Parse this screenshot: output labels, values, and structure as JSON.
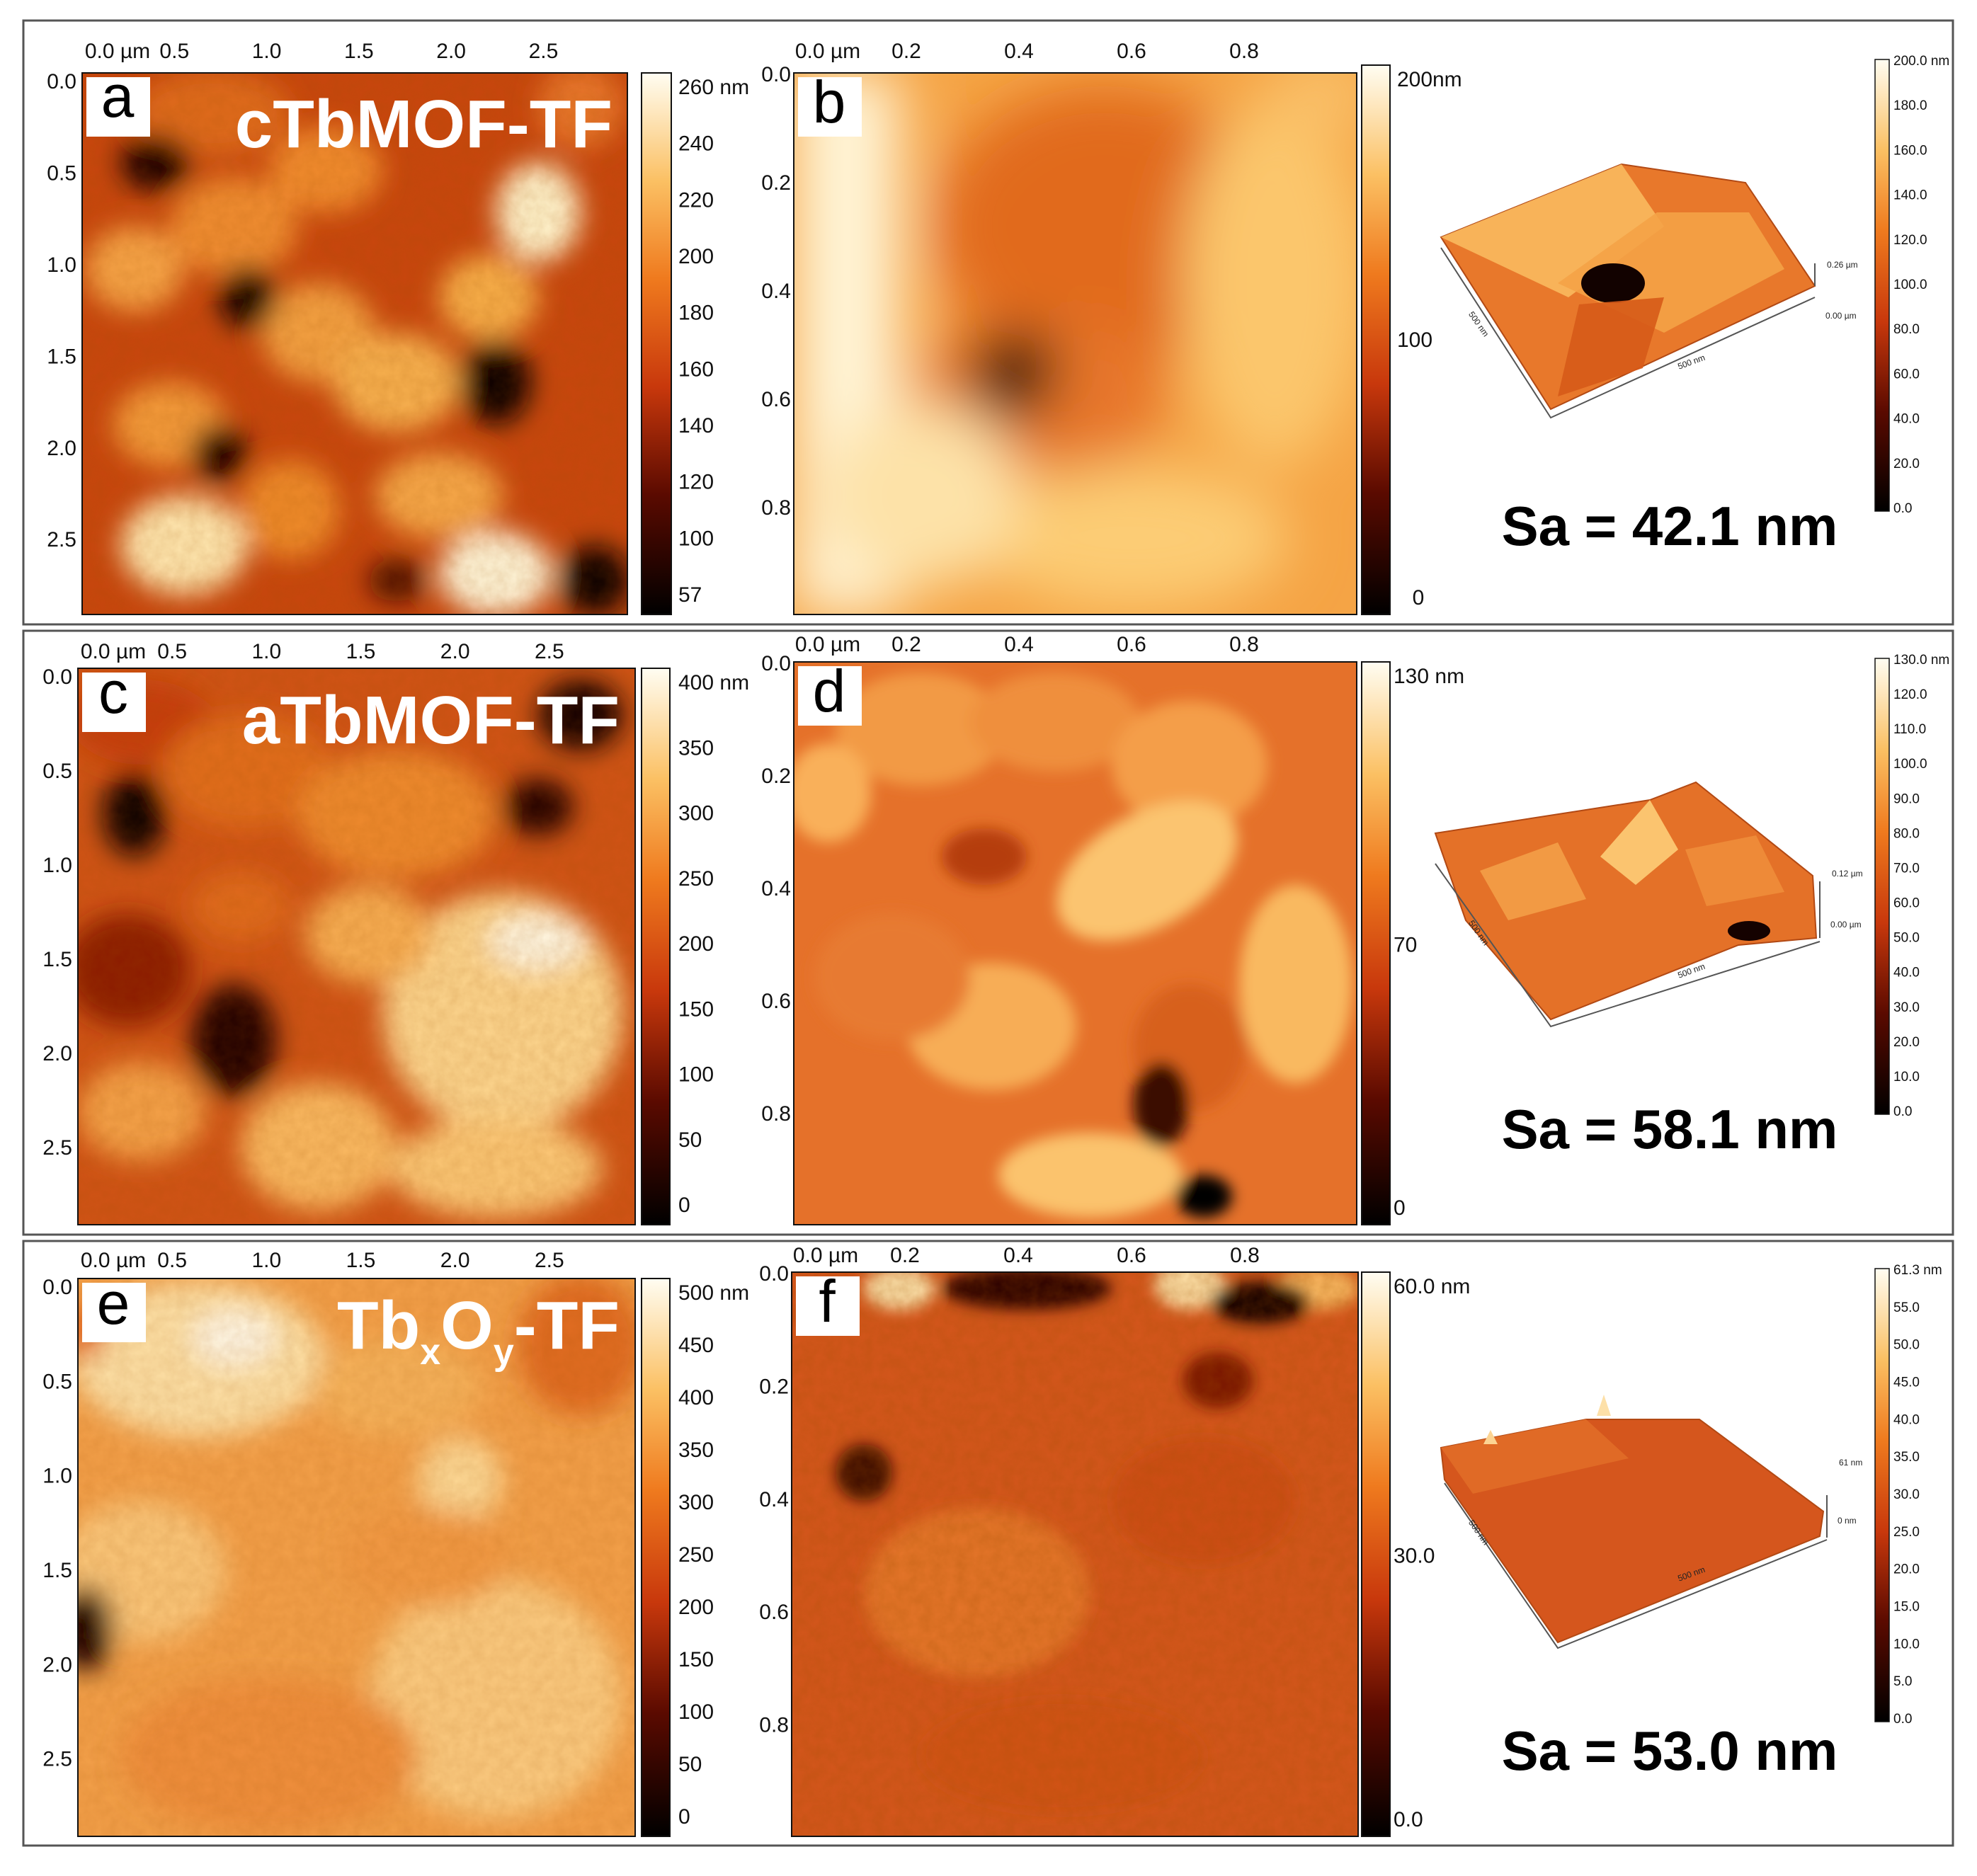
{
  "x_ticks_3um": [
    "0.0 µm",
    "0.5",
    "1.0",
    "1.5",
    "2.0",
    "2.5"
  ],
  "y_ticks_3um": [
    "0.0",
    "0.5",
    "1.0",
    "1.5",
    "2.0",
    "2.5"
  ],
  "x_ticks_1um": [
    "0.0 µm",
    "0.2",
    "0.4",
    "0.6",
    "0.8"
  ],
  "y_ticks_1um": [
    "0.0",
    "0.2",
    "0.4",
    "0.6",
    "0.8"
  ],
  "rows": [
    {
      "left_letter": "a",
      "sample_title": "cTbMOF-TF",
      "left_colorbar": [
        "260 nm",
        "240",
        "220",
        "200",
        "180",
        "160",
        "140",
        "120",
        "100",
        "57"
      ],
      "right_letter": "b",
      "right_colorbar": [
        "200",
        "nm",
        "100",
        "0"
      ],
      "view3d_colorbar": [
        "200.0 nm",
        "180.0",
        "160.0",
        "140.0",
        "120.0",
        "100.0",
        "80.0",
        "60.0",
        "40.0",
        "20.0",
        "0.0"
      ],
      "view3d_labels": [
        "0.26 µm",
        "0.00 µm",
        "500 nm",
        "500 nm"
      ],
      "sa": "Sa = 42.1 nm"
    },
    {
      "left_letter": "c",
      "sample_title": "aTbMOF-TF",
      "left_colorbar": [
        "400 nm",
        "350",
        "300",
        "250",
        "200",
        "150",
        "100",
        "50",
        "0"
      ],
      "right_letter": "d",
      "right_colorbar": [
        "130 nm",
        "70",
        "0"
      ],
      "view3d_colorbar": [
        "130.0 nm",
        "120.0",
        "110.0",
        "100.0",
        "90.0",
        "80.0",
        "70.0",
        "60.0",
        "50.0",
        "40.0",
        "30.0",
        "20.0",
        "10.0",
        "0.0"
      ],
      "view3d_labels": [
        "0.12 µm",
        "0.00 µm",
        "500 nm",
        "500 nm"
      ],
      "sa": "Sa = 58.1 nm"
    },
    {
      "left_letter": "e",
      "sample_title_main": "Tb",
      "sample_title_sub1": "x",
      "sample_title_mid": "O",
      "sample_title_sub2": "y",
      "sample_title_end": "-TF",
      "left_colorbar": [
        "500 nm",
        "450",
        "400",
        "350",
        "300",
        "250",
        "200",
        "150",
        "100",
        "50",
        "0"
      ],
      "right_letter": "f",
      "right_colorbar": [
        "60.0 nm",
        "30.0",
        "0.0"
      ],
      "view3d_colorbar": [
        "61.3 nm",
        "55.0",
        "50.0",
        "45.0",
        "40.0",
        "35.0",
        "30.0",
        "25.0",
        "20.0",
        "15.0",
        "10.0",
        "5.0",
        "0.0"
      ],
      "view3d_labels": [
        "61 nm",
        "0 nm",
        "500 nm",
        "500 nm"
      ],
      "sa": "Sa = 53.0 nm"
    }
  ],
  "colors": {
    "afm_low": "#000000",
    "afm_mid": "#c8380c",
    "afm_high": "#fffbe8",
    "frame": "#555555"
  }
}
